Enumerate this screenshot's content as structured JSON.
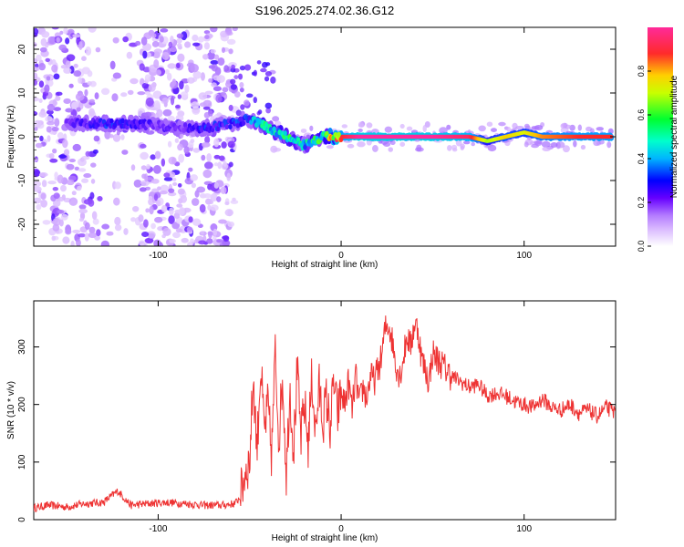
{
  "title": "S196.2025.274.02.36.G12",
  "colors": {
    "snr_line": "#ee3333",
    "background": "#ffffff",
    "axis": "#000000",
    "colormap": [
      "#ffffff",
      "#b47cff",
      "#3a00ff",
      "#00b4ff",
      "#00ff60",
      "#ffff00",
      "#ff2a2a",
      "#ff2a9a"
    ]
  },
  "chart_data": [
    {
      "type": "heatmap",
      "title": "S196.2025.274.02.36.G12",
      "xlabel": "Height of straight line (km)",
      "ylabel": "Frequency (Hz)",
      "xlim": [
        -168,
        150
      ],
      "ylim": [
        -25,
        25
      ],
      "x_ticks": [
        -100,
        0,
        100
      ],
      "x_tick_labels": [
        "-100",
        "0",
        "100"
      ],
      "y_ticks": [
        -20,
        -10,
        0,
        10,
        20
      ],
      "y_tick_labels": [
        "-20",
        "-10",
        "0",
        "10",
        "20"
      ],
      "colorbar": {
        "label": "Normalized spectral amplitude",
        "range": [
          0,
          1
        ],
        "ticks": [
          0.0,
          0.2,
          0.4,
          0.6,
          0.8
        ],
        "tick_labels": [
          "0.0",
          "0.2",
          "0.4",
          "0.6",
          "0.8"
        ]
      },
      "ridge": {
        "description": "dominant frequency track",
        "x": [
          -150,
          -130,
          -110,
          -90,
          -75,
          -60,
          -50,
          -45,
          -40,
          -35,
          -30,
          -25,
          -20,
          -15,
          -10,
          -5,
          0,
          10,
          30,
          50,
          70,
          80,
          90,
          100,
          110,
          130,
          148
        ],
        "freq": [
          3,
          3,
          3,
          2,
          2,
          3,
          4,
          3,
          2,
          1,
          0,
          -1,
          -2,
          -1,
          0,
          0,
          0,
          0,
          0,
          0,
          0,
          -1,
          0,
          1,
          0,
          0,
          0
        ],
        "amplitude": [
          0.2,
          0.3,
          0.25,
          0.2,
          0.3,
          0.3,
          0.35,
          0.5,
          0.55,
          0.5,
          0.55,
          0.5,
          0.45,
          0.55,
          0.6,
          0.8,
          0.9,
          1.0,
          1.0,
          1.0,
          0.95,
          0.7,
          0.8,
          0.75,
          0.85,
          0.9,
          0.9
        ]
      }
    },
    {
      "type": "line",
      "title": "",
      "xlabel": "Height of straight line (km)",
      "ylabel": "SNR (10 * v/v)",
      "xlim": [
        -168,
        150
      ],
      "ylim": [
        0,
        380
      ],
      "x_ticks": [
        -100,
        0,
        100
      ],
      "x_tick_labels": [
        "-100",
        "0",
        "100"
      ],
      "y_ticks": [
        0,
        100,
        200,
        300
      ],
      "y_tick_labels": [
        "0",
        "100",
        "200",
        "300"
      ],
      "series": [
        {
          "name": "SNR",
          "x": [
            -168,
            -160,
            -150,
            -140,
            -130,
            -122,
            -115,
            -105,
            -95,
            -85,
            -75,
            -65,
            -58,
            -55,
            -52,
            -50,
            -48,
            -46,
            -44,
            -42,
            -40,
            -38,
            -36,
            -34,
            -32,
            -30,
            -28,
            -26,
            -24,
            -22,
            -20,
            -18,
            -16,
            -14,
            -12,
            -10,
            -8,
            -6,
            -4,
            -2,
            0,
            2,
            4,
            6,
            8,
            10,
            12,
            14,
            16,
            18,
            20,
            22,
            24,
            26,
            28,
            30,
            32,
            34,
            36,
            38,
            40,
            42,
            44,
            46,
            48,
            50,
            52,
            55,
            60,
            65,
            70,
            75,
            80,
            85,
            90,
            95,
            100,
            105,
            110,
            115,
            120,
            125,
            130,
            135,
            140,
            145,
            150
          ],
          "y": [
            20,
            25,
            22,
            28,
            30,
            50,
            25,
            28,
            30,
            28,
            25,
            25,
            28,
            40,
            90,
            100,
            250,
            120,
            270,
            150,
            200,
            110,
            290,
            140,
            250,
            80,
            230,
            120,
            260,
            140,
            200,
            130,
            250,
            150,
            230,
            170,
            210,
            160,
            240,
            180,
            220,
            200,
            240,
            190,
            250,
            200,
            230,
            210,
            250,
            240,
            260,
            280,
            330,
            340,
            310,
            270,
            250,
            280,
            320,
            300,
            340,
            330,
            280,
            260,
            240,
            290,
            280,
            270,
            250,
            240,
            230,
            235,
            215,
            220,
            215,
            205,
            200,
            195,
            210,
            195,
            190,
            200,
            185,
            190,
            180,
            195,
            185
          ]
        }
      ]
    }
  ]
}
